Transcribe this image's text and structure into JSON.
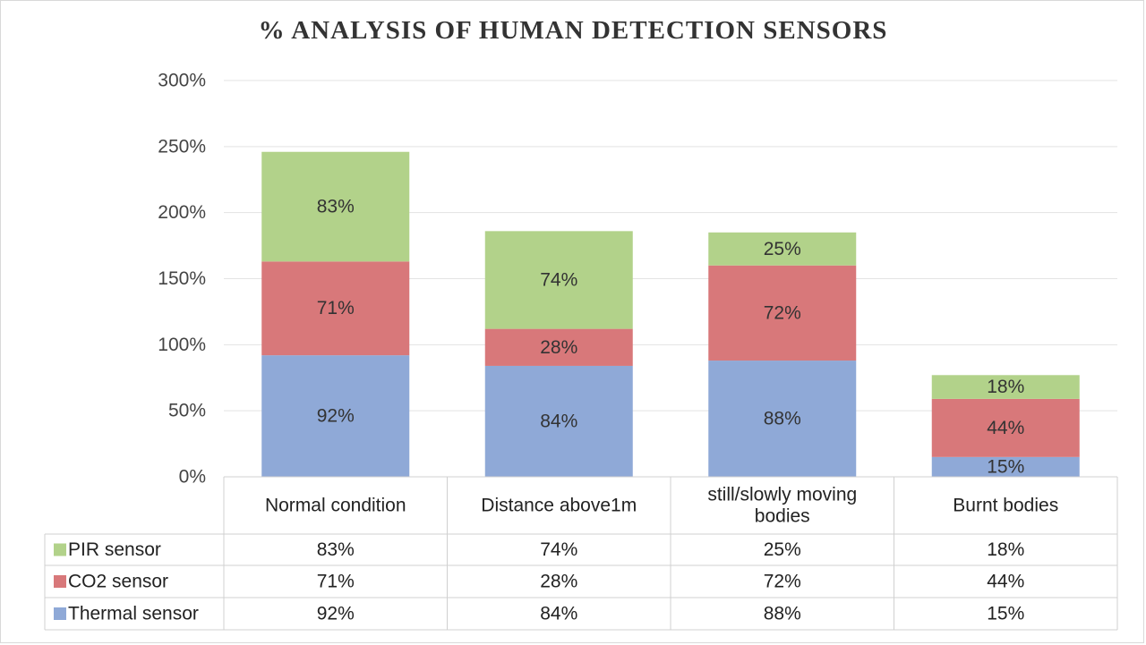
{
  "chart_data": {
    "type": "bar",
    "stacked": true,
    "title": "% ANALYSIS OF HUMAN DETECTION SENSORS",
    "categories": [
      "Normal condition",
      "Distance above1m",
      "still/slowly moving bodies",
      "Burnt bodies"
    ],
    "category_lines": [
      [
        "Normal condition"
      ],
      [
        "Distance above1m"
      ],
      [
        "still/slowly moving",
        "bodies"
      ],
      [
        "Burnt bodies"
      ]
    ],
    "series": [
      {
        "name": "Thermal sensor",
        "values": [
          92,
          84,
          88,
          15
        ],
        "color": "#8fa9d7"
      },
      {
        "name": "CO2 sensor",
        "values": [
          71,
          28,
          72,
          44
        ],
        "color": "#d8787a"
      },
      {
        "name": "PIR sensor",
        "values": [
          83,
          74,
          25,
          18
        ],
        "color": "#b2d28a"
      }
    ],
    "ylim": [
      0,
      300
    ],
    "yticks": [
      0,
      50,
      100,
      150,
      200,
      250,
      300
    ],
    "ytick_labels": [
      "0%",
      "50%",
      "100%",
      "150%",
      "200%",
      "250%",
      "300%"
    ],
    "data_table_order": [
      "PIR sensor",
      "CO2 sensor",
      "Thermal sensor"
    ],
    "grid": true,
    "legend": "data table"
  }
}
